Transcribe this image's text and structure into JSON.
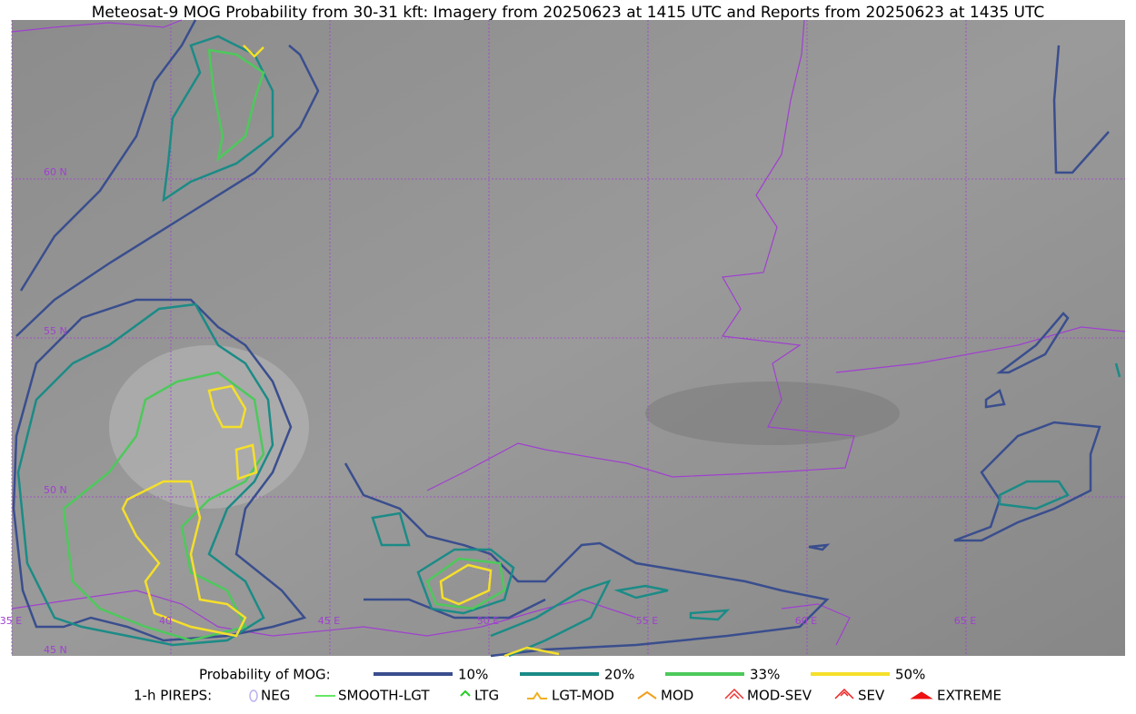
{
  "title": "Meteosat-9 MOG Probability from 30-31 kft: Imagery from 20250623 at 1415 UTC and Reports from 20250623 at 1435 UTC",
  "map": {
    "lat_labels": [
      "60 N",
      "55 N",
      "50 N",
      "45 N"
    ],
    "lon_labels": [
      "35 E",
      "40",
      "45 E",
      "50 E",
      "55 E",
      "60 E",
      "65 E"
    ]
  },
  "legend": {
    "probability": {
      "label": "Probability of MOG:",
      "items": [
        {
          "label": "10%",
          "color": "#3a4e8e"
        },
        {
          "label": "20%",
          "color": "#1b8b86"
        },
        {
          "label": "33%",
          "color": "#4dc95b"
        },
        {
          "label": "50%",
          "color": "#f5df2a"
        }
      ]
    },
    "pireps": {
      "label": "1-h PIREPS:",
      "items": [
        {
          "label": "NEG",
          "color": "#b9b0f0"
        },
        {
          "label": "SMOOTH-LGT",
          "color": "#33dd33"
        },
        {
          "label": "LTG",
          "color": "#22cc22"
        },
        {
          "label": "LGT-MOD",
          "color": "#f0b020"
        },
        {
          "label": "MOD",
          "color": "#f0a020"
        },
        {
          "label": "MOD-SEV",
          "color": "#ee3333"
        },
        {
          "label": "SEV",
          "color": "#ee2222"
        },
        {
          "label": "EXTREME",
          "color": "#ee1111"
        }
      ]
    }
  }
}
